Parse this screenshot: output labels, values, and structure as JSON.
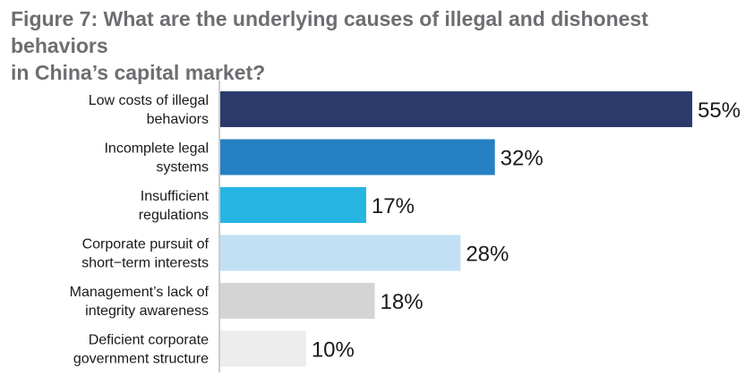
{
  "chart_data": {
    "type": "bar",
    "orientation": "horizontal",
    "title": "Figure 7: What are the underlying causes of illegal and dishonest behaviors in China’s capital market?",
    "title_lines": [
      "Figure 7: What are the underlying causes of illegal and dishonest behaviors",
      "in China’s capital market?"
    ],
    "categories": [
      "Low costs of illegal behaviors",
      "Incomplete legal systems",
      "Insufficient regulations",
      "Corporate pursuit of short-term interests",
      "Management’s lack of integrity awareness",
      "Deficient corporate government structure"
    ],
    "category_lines": [
      [
        "Low costs of illegal",
        "behaviors"
      ],
      [
        "Incomplete legal",
        "systems"
      ],
      [
        "Insufficient",
        "regulations"
      ],
      [
        "Corporate pursuit of",
        "short−term interests"
      ],
      [
        "Management’s lack of",
        "integrity awareness"
      ],
      [
        "Deficient corporate",
        "government structure"
      ]
    ],
    "values": [
      55,
      32,
      17,
      28,
      18,
      10
    ],
    "value_labels": [
      "55%",
      "32%",
      "17%",
      "28%",
      "18%",
      "10%"
    ],
    "colors": [
      "#2b3a6b",
      "#2680c2",
      "#27b5e3",
      "#c2e0f4",
      "#d4d4d4",
      "#ececec"
    ],
    "axis_color": "#9a9a9a",
    "xlim": [
      0,
      60
    ],
    "xlabel": "",
    "ylabel": "",
    "grid": false,
    "legend": "none"
  }
}
